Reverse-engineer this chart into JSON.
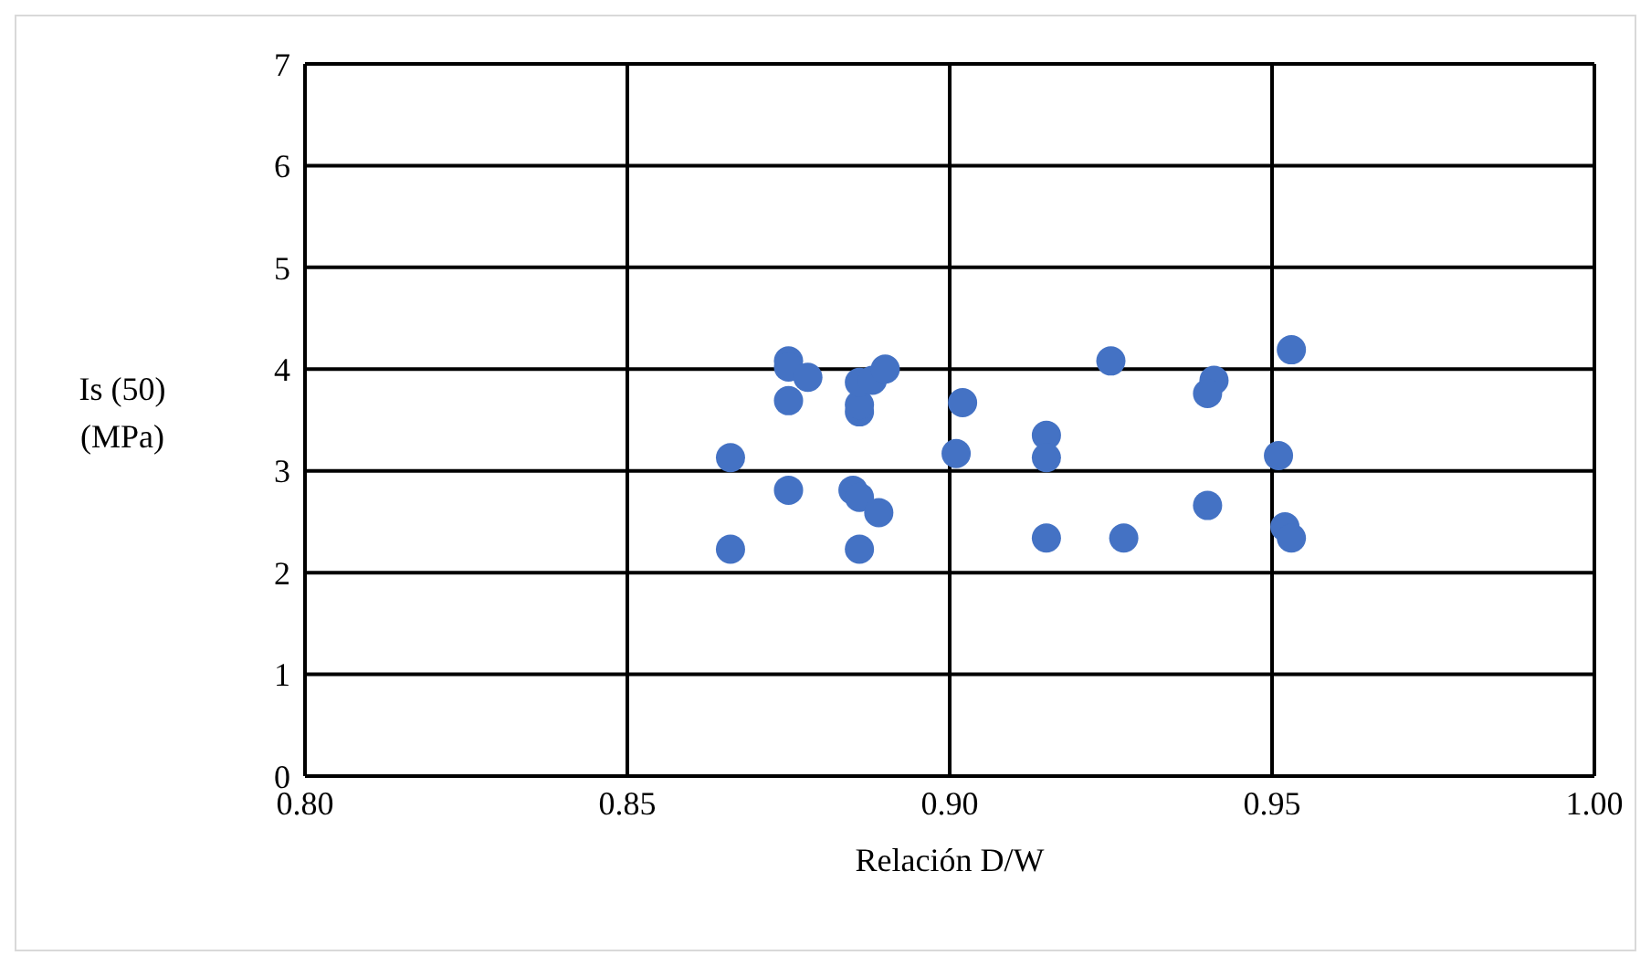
{
  "chart_data": {
    "type": "scatter",
    "xlabel": "Relación D/W",
    "ylabel": "Is (50) (MPa)",
    "x": [
      0.866,
      0.866,
      0.875,
      0.875,
      0.878,
      0.875,
      0.875,
      0.885,
      0.886,
      0.889,
      0.886,
      0.886,
      0.886,
      0.886,
      0.888,
      0.89,
      0.902,
      0.901,
      0.915,
      0.915,
      0.915,
      0.927,
      0.925,
      0.941,
      0.94,
      0.94,
      0.951,
      0.952,
      0.953,
      0.953
    ],
    "values": [
      3.13,
      2.23,
      4.08,
      4.02,
      3.92,
      3.69,
      2.81,
      2.81,
      2.74,
      2.59,
      2.23,
      3.58,
      3.65,
      3.87,
      3.89,
      4.0,
      3.67,
      3.17,
      3.35,
      3.13,
      2.34,
      2.34,
      4.08,
      3.89,
      3.76,
      2.66,
      3.15,
      2.45,
      2.34,
      4.19
    ],
    "color": "#4472c4",
    "marker": "circle",
    "xlim": [
      0.8,
      1.0
    ],
    "xticks": [
      {
        "value": 0.8,
        "label": "0.80"
      },
      {
        "value": 0.85,
        "label": "0.85"
      },
      {
        "value": 0.9,
        "label": "0.90"
      },
      {
        "value": 0.95,
        "label": "0.95"
      },
      {
        "value": 1.0,
        "label": "1.00"
      }
    ],
    "ylim": [
      0,
      7
    ],
    "yticks": [
      0,
      1,
      2,
      3,
      4,
      5,
      6,
      7
    ],
    "grid": true,
    "legend": false
  }
}
